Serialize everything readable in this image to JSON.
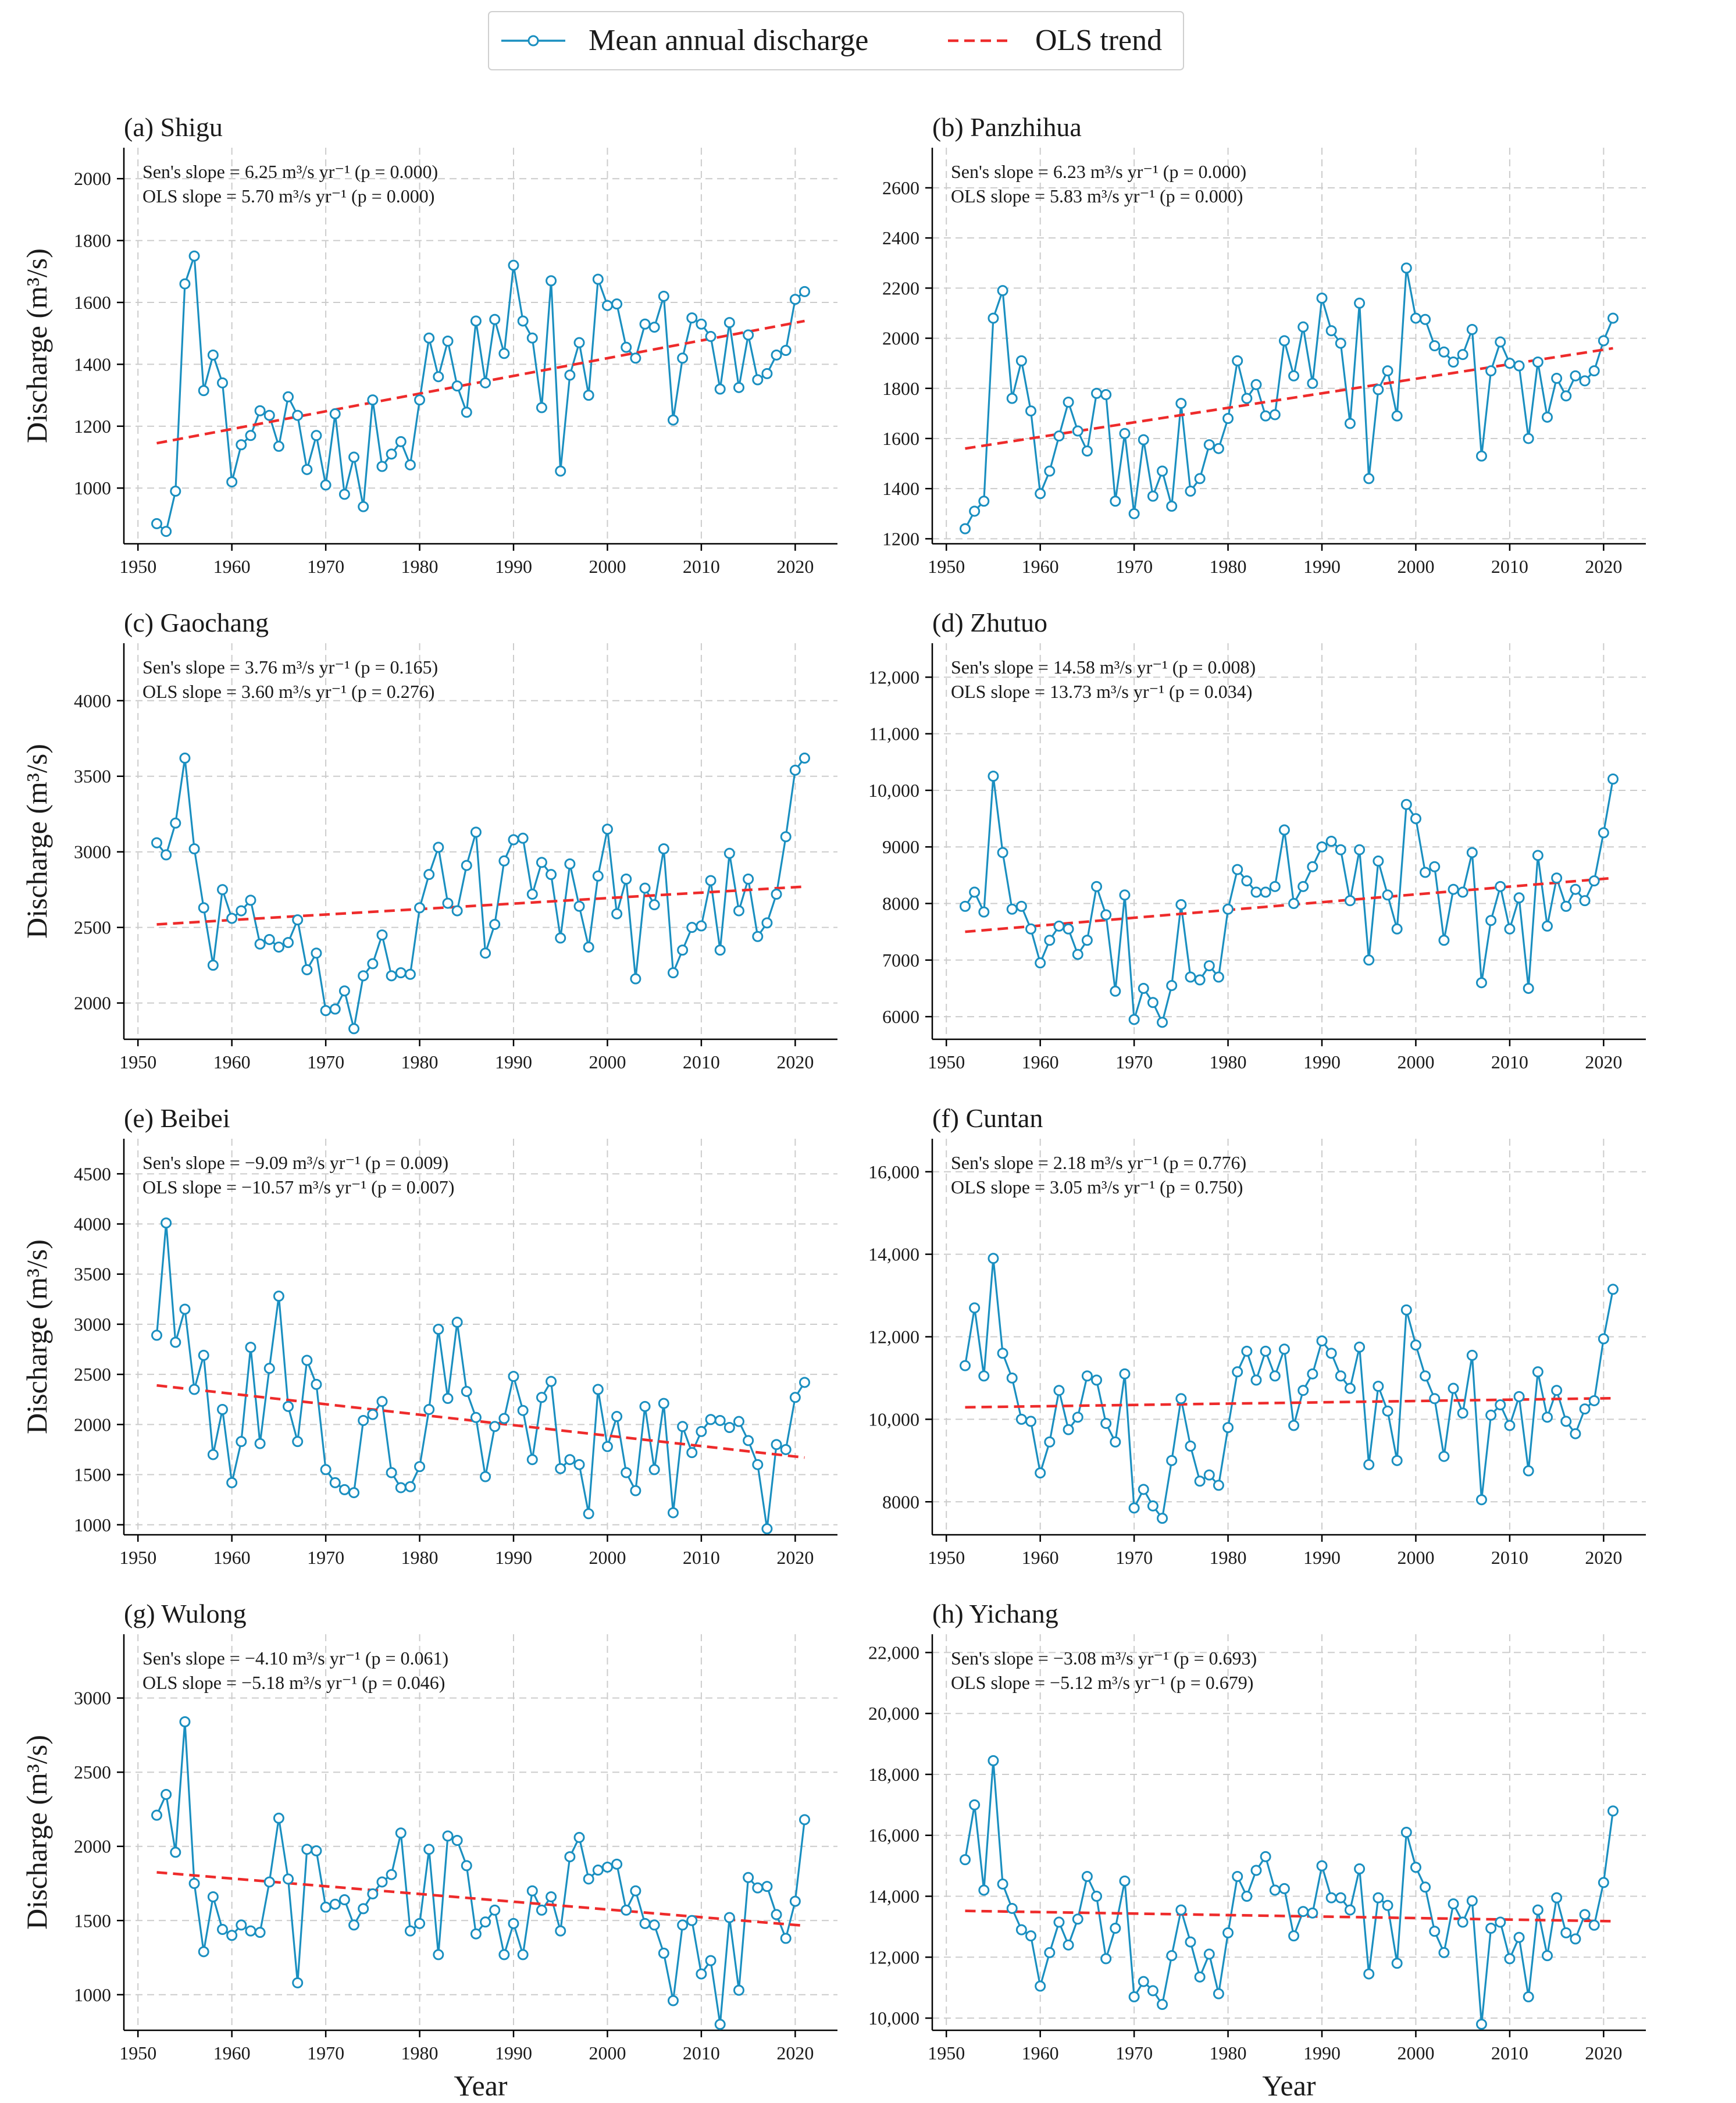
{
  "legend": {
    "discharge_label": "Mean annual discharge",
    "trend_label": "OLS trend"
  },
  "colors": {
    "series": "#1a8fc0",
    "trend": "#ee2b2b",
    "grid": "#cccccc",
    "axis": "#000000"
  },
  "chart_data": [
    {
      "type": "line",
      "title": "(a) Shigu",
      "xlabel": "",
      "ylabel": "Discharge (m³/s)",
      "xlim": [
        1948.5,
        2024.5
      ],
      "ylim": [
        820,
        2100
      ],
      "xticks": [
        1950,
        1960,
        1970,
        1980,
        1990,
        2000,
        2010,
        2020
      ],
      "yticks": [
        1000,
        1200,
        1400,
        1600,
        1800,
        2000
      ],
      "ytick_labels": [
        "1000",
        "1200",
        "1400",
        "1600",
        "1800",
        "2000"
      ],
      "annotation": [
        "Sen's slope = 6.25 m³/s yr⁻¹ (p = 0.000)",
        "OLS slope  = 5.70 m³/s yr⁻¹ (p = 0.000)"
      ],
      "x_start": 1952,
      "values": [
        885,
        860,
        990,
        1660,
        1750,
        1315,
        1430,
        1340,
        1020,
        1140,
        1170,
        1250,
        1235,
        1135,
        1295,
        1235,
        1060,
        1170,
        1010,
        1240,
        980,
        1100,
        940,
        1285,
        1070,
        1110,
        1150,
        1075,
        1285,
        1485,
        1360,
        1475,
        1330,
        1245,
        1540,
        1340,
        1545,
        1435,
        1720,
        1540,
        1485,
        1260,
        1670,
        1055,
        1365,
        1470,
        1300,
        1675,
        1590,
        1595,
        1455,
        1420,
        1530,
        1520,
        1620,
        1220,
        1420,
        1550,
        1530,
        1490,
        1320,
        1535,
        1325,
        1495,
        1350,
        1370,
        1430,
        1445,
        1610,
        1635
      ],
      "trend": {
        "x": [
          1952,
          2021
        ],
        "y": [
          1145,
          1540
        ]
      }
    },
    {
      "type": "line",
      "title": "(b) Panzhihua",
      "xlabel": "",
      "ylabel": "",
      "xlim": [
        1948.5,
        2024.5
      ],
      "ylim": [
        1180,
        2760
      ],
      "xticks": [
        1950,
        1960,
        1970,
        1980,
        1990,
        2000,
        2010,
        2020
      ],
      "yticks": [
        1200,
        1400,
        1600,
        1800,
        2000,
        2200,
        2400,
        2600
      ],
      "ytick_labels": [
        "1200",
        "1400",
        "1600",
        "1800",
        "2000",
        "2200",
        "2400",
        "2600"
      ],
      "annotation": [
        "Sen's slope = 6.23 m³/s yr⁻¹ (p = 0.000)",
        "OLS slope  = 5.83 m³/s yr⁻¹ (p = 0.000)"
      ],
      "x_start": 1952,
      "values": [
        1240,
        1310,
        1350,
        2080,
        2190,
        1760,
        1910,
        1710,
        1380,
        1470,
        1610,
        1745,
        1630,
        1550,
        1780,
        1775,
        1350,
        1620,
        1300,
        1595,
        1370,
        1470,
        1330,
        1740,
        1390,
        1440,
        1575,
        1560,
        1680,
        1910,
        1760,
        1815,
        1690,
        1695,
        1990,
        1850,
        2045,
        1820,
        2160,
        2030,
        1980,
        1660,
        2140,
        1440,
        1795,
        1870,
        1690,
        2280,
        2080,
        2075,
        1970,
        1945,
        1905,
        1935,
        2035,
        1530,
        1870,
        1985,
        1900,
        1890,
        1600,
        1905,
        1685,
        1840,
        1770,
        1850,
        1830,
        1870,
        1990,
        2080
      ],
      "trend": {
        "x": [
          1952,
          2021
        ],
        "y": [
          1560,
          1960
        ]
      }
    },
    {
      "type": "line",
      "title": "(c) Gaochang",
      "xlabel": "",
      "ylabel": "Discharge (m³/s)",
      "xlim": [
        1948.5,
        2024.5
      ],
      "ylim": [
        1760,
        4380
      ],
      "xticks": [
        1950,
        1960,
        1970,
        1980,
        1990,
        2000,
        2010,
        2020
      ],
      "yticks": [
        2000,
        2500,
        3000,
        3500,
        4000
      ],
      "ytick_labels": [
        "2000",
        "2500",
        "3000",
        "3500",
        "4000"
      ],
      "annotation": [
        "Sen's slope = 3.76 m³/s yr⁻¹ (p = 0.165)",
        "OLS slope  = 3.60 m³/s yr⁻¹ (p = 0.276)"
      ],
      "x_start": 1952,
      "values": [
        3060,
        2980,
        3190,
        3620,
        3020,
        2630,
        2250,
        2750,
        2560,
        2610,
        2680,
        2390,
        2420,
        2370,
        2400,
        2550,
        2220,
        2330,
        1950,
        1960,
        2080,
        1830,
        2180,
        2260,
        2450,
        2180,
        2200,
        2190,
        2630,
        2850,
        3030,
        2660,
        2610,
        2910,
        3130,
        2330,
        2520,
        2940,
        3080,
        3090,
        2720,
        2930,
        2850,
        2430,
        2920,
        2640,
        2370,
        2840,
        3150,
        2590,
        2820,
        2160,
        2760,
        2650,
        3020,
        2200,
        2350,
        2500,
        2510,
        2810,
        2350,
        2990,
        2610,
        2820,
        2440,
        2530,
        2720,
        3100,
        3540,
        3620
      ],
      "trend": {
        "x": [
          1952,
          2021
        ],
        "y": [
          2520,
          2770
        ]
      }
    },
    {
      "type": "line",
      "title": "(d) Zhutuo",
      "xlabel": "",
      "ylabel": "",
      "xlim": [
        1948.5,
        2024.5
      ],
      "ylim": [
        5600,
        12600
      ],
      "xticks": [
        1950,
        1960,
        1970,
        1980,
        1990,
        2000,
        2010,
        2020
      ],
      "yticks": [
        6000,
        7000,
        8000,
        9000,
        10000,
        11000,
        12000
      ],
      "ytick_labels": [
        "6000",
        "7000",
        "8000",
        "9000",
        "10,000",
        "11,000",
        "12,000"
      ],
      "annotation": [
        "Sen's slope = 14.58 m³/s yr⁻¹ (p = 0.008)",
        "OLS slope  = 13.73 m³/s yr⁻¹ (p = 0.034)"
      ],
      "x_start": 1952,
      "values": [
        7950,
        8200,
        7850,
        10250,
        8900,
        7900,
        7950,
        7550,
        6950,
        7350,
        7600,
        7550,
        7100,
        7350,
        8300,
        7800,
        6450,
        8150,
        5950,
        6500,
        6250,
        5900,
        6550,
        7980,
        6700,
        6650,
        6900,
        6700,
        7900,
        8600,
        8400,
        8200,
        8200,
        8300,
        9300,
        8000,
        8300,
        8650,
        9000,
        9100,
        8950,
        8050,
        8950,
        7000,
        8750,
        8150,
        7550,
        9750,
        9500,
        8550,
        8650,
        7350,
        8250,
        8200,
        8900,
        6600,
        7700,
        8300,
        7550,
        8100,
        6500,
        8850,
        7600,
        8450,
        7950,
        8250,
        8050,
        8400,
        9250,
        10200
      ],
      "trend": {
        "x": [
          1952,
          2021
        ],
        "y": [
          7500,
          8450
        ]
      }
    },
    {
      "type": "line",
      "title": "(e) Beibei",
      "xlabel": "",
      "ylabel": "Discharge (m³/s)",
      "xlim": [
        1948.5,
        2024.5
      ],
      "ylim": [
        900,
        4850
      ],
      "xticks": [
        1950,
        1960,
        1970,
        1980,
        1990,
        2000,
        2010,
        2020
      ],
      "yticks": [
        1000,
        1500,
        2000,
        2500,
        3000,
        3500,
        4000,
        4500
      ],
      "ytick_labels": [
        "1000",
        "1500",
        "2000",
        "2500",
        "3000",
        "3500",
        "4000",
        "4500"
      ],
      "annotation": [
        "Sen's slope = −9.09 m³/s yr⁻¹ (p = 0.009)",
        "OLS slope  = −10.57 m³/s yr⁻¹ (p = 0.007)"
      ],
      "x_start": 1952,
      "values": [
        2890,
        4010,
        2820,
        3150,
        2350,
        2690,
        1700,
        2150,
        1420,
        1830,
        2770,
        1810,
        2560,
        3280,
        2180,
        1830,
        2640,
        2400,
        1550,
        1420,
        1350,
        1320,
        2040,
        2100,
        2230,
        1520,
        1370,
        1380,
        1580,
        2150,
        2950,
        2260,
        3020,
        2330,
        2070,
        1480,
        1980,
        2060,
        2480,
        2140,
        1650,
        2270,
        2430,
        1560,
        1650,
        1600,
        1110,
        2350,
        1780,
        2080,
        1520,
        1340,
        2180,
        1550,
        2210,
        1120,
        1980,
        1720,
        1930,
        2050,
        2040,
        1970,
        2030,
        1840,
        1600,
        960,
        1800,
        1750,
        2270,
        2420
      ],
      "trend": {
        "x": [
          1952,
          2021
        ],
        "y": [
          2390,
          1670
        ]
      }
    },
    {
      "type": "line",
      "title": "(f) Cuntan",
      "xlabel": "",
      "ylabel": "",
      "xlim": [
        1948.5,
        2024.5
      ],
      "ylim": [
        7200,
        16800
      ],
      "xticks": [
        1950,
        1960,
        1970,
        1980,
        1990,
        2000,
        2010,
        2020
      ],
      "yticks": [
        8000,
        10000,
        12000,
        14000,
        16000
      ],
      "ytick_labels": [
        "8000",
        "10,000",
        "12,000",
        "14,000",
        "16,000"
      ],
      "annotation": [
        "Sen's slope = 2.18 m³/s yr⁻¹ (p = 0.776)",
        "OLS slope  = 3.05 m³/s yr⁻¹ (p = 0.750)"
      ],
      "x_start": 1952,
      "values": [
        11300,
        12700,
        11050,
        13900,
        11600,
        11000,
        10000,
        9950,
        8700,
        9450,
        10700,
        9750,
        10050,
        11050,
        10950,
        9900,
        9450,
        11100,
        7850,
        8300,
        7900,
        7600,
        9000,
        10500,
        9350,
        8500,
        8650,
        8400,
        9800,
        11150,
        11650,
        10950,
        11650,
        11050,
        11700,
        9850,
        10700,
        11100,
        11900,
        11600,
        11050,
        10750,
        11750,
        8900,
        10800,
        10200,
        9000,
        12650,
        11800,
        11050,
        10500,
        9100,
        10750,
        10150,
        11550,
        8050,
        10100,
        10350,
        9850,
        10550,
        8750,
        11150,
        10050,
        10700,
        9950,
        9650,
        10250,
        10450,
        11950,
        13150
      ],
      "trend": {
        "x": [
          1952,
          2021
        ],
        "y": [
          10290,
          10510
        ]
      }
    },
    {
      "type": "line",
      "title": "(g) Wulong",
      "xlabel": "Year",
      "ylabel": "Discharge (m³/s)",
      "xlim": [
        1948.5,
        2024.5
      ],
      "ylim": [
        760,
        3430
      ],
      "xticks": [
        1950,
        1960,
        1970,
        1980,
        1990,
        2000,
        2010,
        2020
      ],
      "yticks": [
        1000,
        1500,
        2000,
        2500,
        3000
      ],
      "ytick_labels": [
        "1000",
        "1500",
        "2000",
        "2500",
        "3000"
      ],
      "annotation": [
        "Sen's slope = −4.10 m³/s yr⁻¹ (p = 0.061)",
        "OLS slope  = −5.18 m³/s yr⁻¹ (p = 0.046)"
      ],
      "x_start": 1952,
      "values": [
        2210,
        2350,
        1960,
        2840,
        1750,
        1290,
        1660,
        1440,
        1400,
        1470,
        1430,
        1420,
        1760,
        2190,
        1780,
        1080,
        1980,
        1970,
        1590,
        1610,
        1640,
        1470,
        1580,
        1680,
        1760,
        1810,
        2090,
        1430,
        1480,
        1980,
        1270,
        2070,
        2040,
        1870,
        1410,
        1490,
        1570,
        1270,
        1480,
        1270,
        1700,
        1570,
        1660,
        1430,
        1930,
        2060,
        1780,
        1840,
        1860,
        1880,
        1570,
        1700,
        1480,
        1470,
        1280,
        960,
        1470,
        1500,
        1140,
        1230,
        800,
        1520,
        1030,
        1790,
        1720,
        1730,
        1540,
        1380,
        1630,
        2180
      ],
      "trend": {
        "x": [
          1952,
          2021
        ],
        "y": [
          1825,
          1465
        ]
      }
    },
    {
      "type": "line",
      "title": "(h) Yichang",
      "xlabel": "Year",
      "ylabel": "",
      "xlim": [
        1948.5,
        2024.5
      ],
      "ylim": [
        9600,
        22600
      ],
      "xticks": [
        1950,
        1960,
        1970,
        1980,
        1990,
        2000,
        2010,
        2020
      ],
      "yticks": [
        10000,
        12000,
        14000,
        16000,
        18000,
        20000,
        22000
      ],
      "ytick_labels": [
        "10,000",
        "12,000",
        "14,000",
        "16,000",
        "18,000",
        "20,000",
        "22,000"
      ],
      "annotation": [
        "Sen's slope = −3.08 m³/s yr⁻¹ (p = 0.693)",
        "OLS slope  = −5.12 m³/s yr⁻¹ (p = 0.679)"
      ],
      "x_start": 1952,
      "values": [
        15200,
        17000,
        14200,
        18450,
        14400,
        13600,
        12900,
        12700,
        11050,
        12150,
        13150,
        12400,
        13250,
        14650,
        14000,
        11950,
        12950,
        14500,
        10700,
        11200,
        10900,
        10450,
        12050,
        13550,
        12500,
        11350,
        12100,
        10800,
        12800,
        14650,
        14000,
        14850,
        15300,
        14200,
        14250,
        12700,
        13500,
        13450,
        15000,
        13950,
        13950,
        13550,
        14900,
        11450,
        13950,
        13700,
        11800,
        16100,
        14950,
        14300,
        12850,
        12150,
        13750,
        13150,
        13850,
        9800,
        12950,
        13150,
        11950,
        12650,
        10700,
        13550,
        12050,
        13950,
        12800,
        12600,
        13400,
        13050,
        14450,
        16800
      ],
      "trend": {
        "x": [
          1952,
          2021
        ],
        "y": [
          13520,
          13180
        ]
      }
    }
  ]
}
